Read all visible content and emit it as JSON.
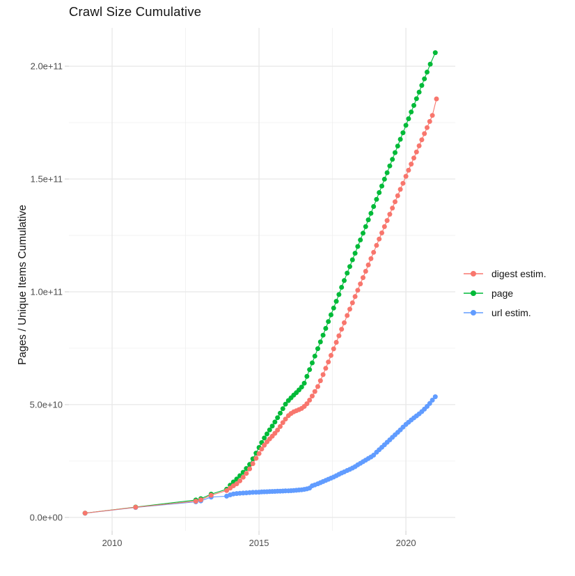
{
  "chart_data": {
    "type": "line",
    "title": "Crawl Size Cumulative",
    "xlabel": "",
    "ylabel": "Pages / Unique Items Cumulative",
    "values_unit": "billions of pages / unique items (1e9)",
    "grid": true,
    "legend_position": "right",
    "xlim": [
      2008.53,
      2021.68
    ],
    "ylim": [
      -5.9,
      217
    ],
    "x_axis": {
      "ticks": [
        {
          "v": 2010,
          "label": "2010"
        },
        {
          "v": 2015,
          "label": "2015"
        },
        {
          "v": 2020,
          "label": "2020"
        }
      ],
      "minor": [
        2012.5,
        2017.5
      ]
    },
    "y_axis": {
      "ticks": [
        {
          "v": 0,
          "label": "0.0e+00"
        },
        {
          "v": 50,
          "label": "5.0e+10"
        },
        {
          "v": 100,
          "label": "1.0e+11"
        },
        {
          "v": 150,
          "label": "1.5e+11"
        },
        {
          "v": 200,
          "label": "2.0e+11"
        }
      ],
      "minor": [
        25,
        75,
        125,
        175
      ]
    },
    "series": [
      {
        "name": "digest estim.",
        "color": "#F8766D",
        "points": [
          [
            2009.08,
            1.9
          ],
          [
            2010.8,
            4.5
          ],
          [
            2012.85,
            7.2
          ],
          [
            2013.02,
            7.8
          ],
          [
            2013.37,
            9.8
          ],
          [
            2013.9,
            11.9
          ],
          [
            2014.02,
            13.0
          ],
          [
            2014.13,
            14.0
          ],
          [
            2014.24,
            14.9
          ],
          [
            2014.35,
            16.2
          ],
          [
            2014.46,
            17.8
          ],
          [
            2014.57,
            19.5
          ],
          [
            2014.68,
            21.5
          ],
          [
            2014.79,
            23.8
          ],
          [
            2014.9,
            26.2
          ],
          [
            2015.0,
            28.3
          ],
          [
            2015.09,
            30.3
          ],
          [
            2015.18,
            32.0
          ],
          [
            2015.27,
            33.5
          ],
          [
            2015.36,
            34.8
          ],
          [
            2015.45,
            36.0
          ],
          [
            2015.54,
            37.3
          ],
          [
            2015.63,
            38.7
          ],
          [
            2015.72,
            40.3
          ],
          [
            2015.81,
            42.0
          ],
          [
            2015.9,
            43.6
          ],
          [
            2016.0,
            45.1
          ],
          [
            2016.09,
            46.1
          ],
          [
            2016.18,
            46.8
          ],
          [
            2016.27,
            47.3
          ],
          [
            2016.36,
            47.8
          ],
          [
            2016.45,
            48.3
          ],
          [
            2016.54,
            49.2
          ],
          [
            2016.63,
            50.4
          ],
          [
            2016.72,
            52.0
          ],
          [
            2016.81,
            53.8
          ],
          [
            2016.9,
            55.8
          ],
          [
            2017.0,
            58.0
          ],
          [
            2017.09,
            60.6
          ],
          [
            2017.18,
            63.3
          ],
          [
            2017.27,
            66.1
          ],
          [
            2017.36,
            68.9
          ],
          [
            2017.45,
            71.8
          ],
          [
            2017.54,
            74.7
          ],
          [
            2017.63,
            77.6
          ],
          [
            2017.72,
            80.5
          ],
          [
            2017.81,
            83.4
          ],
          [
            2017.9,
            86.3
          ],
          [
            2018.0,
            89.5
          ],
          [
            2018.09,
            92.3
          ],
          [
            2018.18,
            95.1
          ],
          [
            2018.27,
            97.9
          ],
          [
            2018.36,
            100.7
          ],
          [
            2018.45,
            103.5
          ],
          [
            2018.54,
            106.3
          ],
          [
            2018.63,
            109.1
          ],
          [
            2018.72,
            111.9
          ],
          [
            2018.81,
            114.7
          ],
          [
            2018.9,
            117.5
          ],
          [
            2019.0,
            120.6
          ],
          [
            2019.09,
            123.4
          ],
          [
            2019.18,
            126.1
          ],
          [
            2019.27,
            128.9
          ],
          [
            2019.36,
            131.6
          ],
          [
            2019.45,
            134.4
          ],
          [
            2019.54,
            137.1
          ],
          [
            2019.63,
            139.9
          ],
          [
            2019.72,
            142.6
          ],
          [
            2019.81,
            145.4
          ],
          [
            2019.9,
            148.1
          ],
          [
            2020.0,
            151.2
          ],
          [
            2020.09,
            153.9
          ],
          [
            2020.18,
            156.6
          ],
          [
            2020.27,
            159.3
          ],
          [
            2020.36,
            162.0
          ],
          [
            2020.45,
            164.7
          ],
          [
            2020.54,
            167.4
          ],
          [
            2020.63,
            170.1
          ],
          [
            2020.72,
            172.8
          ],
          [
            2020.81,
            175.5
          ],
          [
            2020.9,
            178.2
          ],
          [
            2021.04,
            185.5
          ]
        ]
      },
      {
        "name": "page",
        "color": "#00BA38",
        "points": [
          [
            2009.08,
            1.9
          ],
          [
            2010.8,
            4.6
          ],
          [
            2012.85,
            7.7
          ],
          [
            2013.02,
            8.3
          ],
          [
            2013.37,
            10.3
          ],
          [
            2013.9,
            12.5
          ],
          [
            2014.02,
            14.3
          ],
          [
            2014.13,
            15.7
          ],
          [
            2014.24,
            17.0
          ],
          [
            2014.35,
            18.5
          ],
          [
            2014.46,
            20.0
          ],
          [
            2014.57,
            21.7
          ],
          [
            2014.68,
            23.5
          ],
          [
            2014.79,
            26.0
          ],
          [
            2014.9,
            28.5
          ],
          [
            2015.0,
            31.0
          ],
          [
            2015.09,
            33.2
          ],
          [
            2015.18,
            35.2
          ],
          [
            2015.27,
            37.0
          ],
          [
            2015.36,
            38.8
          ],
          [
            2015.45,
            40.5
          ],
          [
            2015.54,
            42.3
          ],
          [
            2015.63,
            44.2
          ],
          [
            2015.72,
            46.2
          ],
          [
            2015.81,
            48.2
          ],
          [
            2015.9,
            50.2
          ],
          [
            2016.0,
            51.8
          ],
          [
            2016.09,
            53.0
          ],
          [
            2016.18,
            54.2
          ],
          [
            2016.27,
            55.3
          ],
          [
            2016.36,
            56.5
          ],
          [
            2016.45,
            57.8
          ],
          [
            2016.54,
            59.5
          ],
          [
            2016.63,
            62.5
          ],
          [
            2016.72,
            65.5
          ],
          [
            2016.81,
            68.5
          ],
          [
            2016.9,
            71.5
          ],
          [
            2017.0,
            74.8
          ],
          [
            2017.09,
            77.8
          ],
          [
            2017.18,
            80.8
          ],
          [
            2017.27,
            83.8
          ],
          [
            2017.36,
            86.8
          ],
          [
            2017.45,
            89.8
          ],
          [
            2017.54,
            92.8
          ],
          [
            2017.63,
            95.8
          ],
          [
            2017.72,
            98.8
          ],
          [
            2017.81,
            102.0
          ],
          [
            2017.9,
            105.0
          ],
          [
            2018.0,
            108.3
          ],
          [
            2018.09,
            111.2
          ],
          [
            2018.18,
            114.2
          ],
          [
            2018.27,
            117.1
          ],
          [
            2018.36,
            120.1
          ],
          [
            2018.45,
            123.0
          ],
          [
            2018.54,
            126.0
          ],
          [
            2018.63,
            128.9
          ],
          [
            2018.72,
            131.9
          ],
          [
            2018.81,
            134.8
          ],
          [
            2018.9,
            137.8
          ],
          [
            2019.0,
            141.0
          ],
          [
            2019.09,
            144.0
          ],
          [
            2019.18,
            146.9
          ],
          [
            2019.27,
            149.9
          ],
          [
            2019.36,
            152.8
          ],
          [
            2019.45,
            155.8
          ],
          [
            2019.54,
            158.7
          ],
          [
            2019.63,
            161.7
          ],
          [
            2019.72,
            164.6
          ],
          [
            2019.81,
            167.6
          ],
          [
            2019.9,
            170.5
          ],
          [
            2020.0,
            173.8
          ],
          [
            2020.09,
            176.7
          ],
          [
            2020.18,
            179.7
          ],
          [
            2020.27,
            182.6
          ],
          [
            2020.36,
            185.6
          ],
          [
            2020.45,
            188.5
          ],
          [
            2020.54,
            191.5
          ],
          [
            2020.63,
            194.4
          ],
          [
            2020.72,
            197.4
          ],
          [
            2020.83,
            200.9
          ],
          [
            2021.0,
            206.0
          ]
        ]
      },
      {
        "name": "url estim.",
        "color": "#619CFF",
        "points": [
          [
            2009.08,
            1.85
          ],
          [
            2010.8,
            4.4
          ],
          [
            2012.85,
            6.9
          ],
          [
            2013.02,
            7.3
          ],
          [
            2013.37,
            9.0
          ],
          [
            2013.9,
            9.4
          ],
          [
            2014.02,
            10.0
          ],
          [
            2014.13,
            10.4
          ],
          [
            2014.24,
            10.6
          ],
          [
            2014.35,
            10.7
          ],
          [
            2014.46,
            10.8
          ],
          [
            2014.57,
            10.9
          ],
          [
            2014.68,
            11.0
          ],
          [
            2014.79,
            11.1
          ],
          [
            2014.9,
            11.15
          ],
          [
            2015.0,
            11.2
          ],
          [
            2015.09,
            11.3
          ],
          [
            2015.18,
            11.35
          ],
          [
            2015.27,
            11.4
          ],
          [
            2015.36,
            11.45
          ],
          [
            2015.45,
            11.5
          ],
          [
            2015.54,
            11.55
          ],
          [
            2015.63,
            11.6
          ],
          [
            2015.72,
            11.65
          ],
          [
            2015.81,
            11.7
          ],
          [
            2015.9,
            11.75
          ],
          [
            2016.0,
            11.8
          ],
          [
            2016.09,
            11.85
          ],
          [
            2016.18,
            11.95
          ],
          [
            2016.27,
            12.05
          ],
          [
            2016.36,
            12.15
          ],
          [
            2016.45,
            12.25
          ],
          [
            2016.54,
            12.45
          ],
          [
            2016.63,
            12.65
          ],
          [
            2016.72,
            13.0
          ],
          [
            2016.81,
            14.0
          ],
          [
            2016.9,
            14.4
          ],
          [
            2017.0,
            14.9
          ],
          [
            2017.09,
            15.4
          ],
          [
            2017.18,
            15.9
          ],
          [
            2017.27,
            16.4
          ],
          [
            2017.36,
            16.9
          ],
          [
            2017.45,
            17.4
          ],
          [
            2017.54,
            17.9
          ],
          [
            2017.63,
            18.5
          ],
          [
            2017.72,
            19.1
          ],
          [
            2017.81,
            19.7
          ],
          [
            2017.9,
            20.2
          ],
          [
            2018.0,
            20.8
          ],
          [
            2018.09,
            21.3
          ],
          [
            2018.18,
            21.9
          ],
          [
            2018.27,
            22.5
          ],
          [
            2018.36,
            23.3
          ],
          [
            2018.45,
            24.0
          ],
          [
            2018.54,
            24.7
          ],
          [
            2018.63,
            25.4
          ],
          [
            2018.72,
            26.1
          ],
          [
            2018.81,
            26.8
          ],
          [
            2018.9,
            27.6
          ],
          [
            2019.0,
            28.9
          ],
          [
            2019.09,
            30.0
          ],
          [
            2019.18,
            31.1
          ],
          [
            2019.27,
            32.2
          ],
          [
            2019.36,
            33.3
          ],
          [
            2019.45,
            34.4
          ],
          [
            2019.54,
            35.5
          ],
          [
            2019.63,
            36.6
          ],
          [
            2019.72,
            37.7
          ],
          [
            2019.81,
            38.8
          ],
          [
            2019.9,
            40.0
          ],
          [
            2020.0,
            41.2
          ],
          [
            2020.09,
            42.2
          ],
          [
            2020.18,
            43.2
          ],
          [
            2020.27,
            44.1
          ],
          [
            2020.36,
            45.0
          ],
          [
            2020.45,
            45.9
          ],
          [
            2020.54,
            46.9
          ],
          [
            2020.63,
            48.0
          ],
          [
            2020.72,
            49.2
          ],
          [
            2020.81,
            50.5
          ],
          [
            2020.9,
            52.0
          ],
          [
            2021.0,
            53.5
          ]
        ]
      }
    ]
  }
}
